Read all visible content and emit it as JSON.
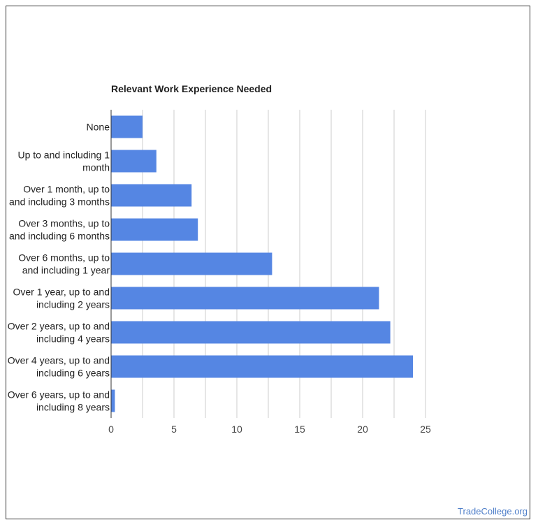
{
  "chart_data": {
    "type": "bar",
    "orientation": "horizontal",
    "title": "Relevant Work Experience Needed",
    "categories": [
      [
        "None"
      ],
      [
        "Up to and including 1",
        "month"
      ],
      [
        "Over 1 month, up to",
        "and including 3 months"
      ],
      [
        "Over 3 months, up to",
        "and including 6 months"
      ],
      [
        "Over 6 months, up to",
        "and including 1 year"
      ],
      [
        "Over 1 year, up to and",
        "including 2 years"
      ],
      [
        "Over 2 years, up to and",
        "including 4 years"
      ],
      [
        "Over 4 years, up to and",
        "including 6 years"
      ],
      [
        "Over 6 years, up to and",
        "including 8 years"
      ]
    ],
    "values": [
      2.5,
      3.6,
      6.4,
      6.9,
      12.8,
      21.3,
      22.2,
      24.0,
      0.3
    ],
    "xlim": [
      0,
      25
    ],
    "xticks": [
      0,
      5,
      10,
      15,
      20,
      25
    ],
    "grid": true,
    "bar_color": "#5586e3",
    "grid_color": "#cccccc"
  },
  "watermark": "TradeCollege.org"
}
